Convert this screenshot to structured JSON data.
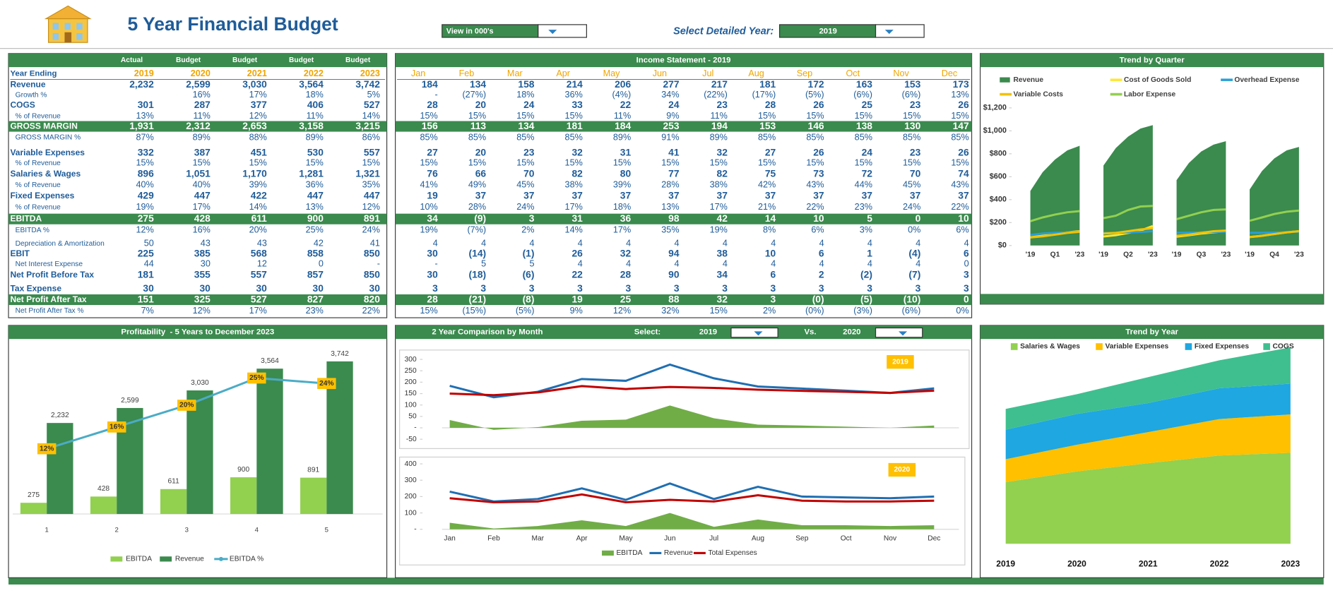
{
  "header": {
    "title": "5 Year Financial Budget",
    "view_selector": "View in 000's",
    "year_selector_label": "Select Detailed Year:",
    "selected_year": "2019"
  },
  "annual_table": {
    "column_types": [
      "Actual",
      "Budget",
      "Budget",
      "Budget",
      "Budget"
    ],
    "year_label": "Year Ending",
    "years": [
      "2019",
      "2020",
      "2021",
      "2022",
      "2023"
    ],
    "rows": [
      {
        "label": "Revenue",
        "values": [
          "2,232",
          "2,599",
          "3,030",
          "3,564",
          "3,742"
        ]
      },
      {
        "label": "Growth %",
        "values": [
          null,
          "16%",
          "17%",
          "18%",
          "5%"
        ]
      },
      {
        "label": "COGS",
        "values": [
          "301",
          "287",
          "377",
          "406",
          "527"
        ]
      },
      {
        "label": "% of Revenue",
        "values": [
          "13%",
          "11%",
          "12%",
          "11%",
          "14%"
        ]
      },
      {
        "label": "GROSS MARGIN",
        "values": [
          "1,931",
          "2,312",
          "2,653",
          "3,158",
          "3,215"
        ]
      },
      {
        "label": "GROSS MARGIN %",
        "values": [
          "87%",
          "89%",
          "88%",
          "89%",
          "86%"
        ]
      },
      {
        "label": "Variable Expenses",
        "values": [
          "332",
          "387",
          "451",
          "530",
          "557"
        ]
      },
      {
        "label": "% of Revenue",
        "values": [
          "15%",
          "15%",
          "15%",
          "15%",
          "15%"
        ]
      },
      {
        "label": "Salaries & Wages",
        "values": [
          "896",
          "1,051",
          "1,170",
          "1,281",
          "1,321"
        ]
      },
      {
        "label": "% of Revenue",
        "values": [
          "40%",
          "40%",
          "39%",
          "36%",
          "35%"
        ]
      },
      {
        "label": "Fixed Expenses",
        "values": [
          "429",
          "447",
          "422",
          "447",
          "447"
        ]
      },
      {
        "label": "% of Revenue",
        "values": [
          "19%",
          "17%",
          "14%",
          "13%",
          "12%"
        ]
      },
      {
        "label": "EBITDA",
        "values": [
          "275",
          "428",
          "611",
          "900",
          "891"
        ]
      },
      {
        "label": "EBITDA %",
        "values": [
          "12%",
          "16%",
          "20%",
          "25%",
          "24%"
        ]
      },
      {
        "label": "Depreciation & Amortization",
        "values": [
          "50",
          "43",
          "43",
          "42",
          "41"
        ]
      },
      {
        "label": "EBIT",
        "values": [
          "225",
          "385",
          "568",
          "858",
          "850"
        ]
      },
      {
        "label": "Net Interest Expense",
        "values": [
          "44",
          "30",
          "12",
          "0",
          "-"
        ]
      },
      {
        "label": "Net Profit Before Tax",
        "values": [
          "181",
          "355",
          "557",
          "857",
          "850"
        ]
      },
      {
        "label": "Tax Expense",
        "values": [
          "30",
          "30",
          "30",
          "30",
          "30"
        ]
      },
      {
        "label": "Net Profit After Tax",
        "values": [
          "151",
          "325",
          "527",
          "827",
          "820"
        ]
      },
      {
        "label": "Net Profit After Tax %",
        "values": [
          "7%",
          "12%",
          "17%",
          "23%",
          "22%"
        ]
      }
    ]
  },
  "income_statement": {
    "title": "Income Statement - 2019",
    "months": [
      "Jan",
      "Feb",
      "Mar",
      "Apr",
      "May",
      "Jun",
      "Jul",
      "Aug",
      "Sep",
      "Oct",
      "Nov",
      "Dec"
    ],
    "rows": [
      [
        "184",
        "134",
        "158",
        "214",
        "206",
        "277",
        "217",
        "181",
        "172",
        "163",
        "153",
        "173"
      ],
      [
        "-",
        "(27%)",
        "18%",
        "36%",
        "(4%)",
        "34%",
        "(22%)",
        "(17%)",
        "(5%)",
        "(6%)",
        "(6%)",
        "13%"
      ],
      [
        "28",
        "20",
        "24",
        "33",
        "22",
        "24",
        "23",
        "28",
        "26",
        "25",
        "23",
        "26"
      ],
      [
        "15%",
        "15%",
        "15%",
        "15%",
        "11%",
        "9%",
        "11%",
        "15%",
        "15%",
        "15%",
        "15%",
        "15%"
      ],
      [
        "156",
        "113",
        "134",
        "181",
        "184",
        "253",
        "194",
        "153",
        "146",
        "138",
        "130",
        "147"
      ],
      [
        "85%",
        "85%",
        "85%",
        "85%",
        "89%",
        "91%",
        "89%",
        "85%",
        "85%",
        "85%",
        "85%",
        "85%"
      ],
      [
        "27",
        "20",
        "23",
        "32",
        "31",
        "41",
        "32",
        "27",
        "26",
        "24",
        "23",
        "26"
      ],
      [
        "15%",
        "15%",
        "15%",
        "15%",
        "15%",
        "15%",
        "15%",
        "15%",
        "15%",
        "15%",
        "15%",
        "15%"
      ],
      [
        "76",
        "66",
        "70",
        "82",
        "80",
        "77",
        "82",
        "75",
        "73",
        "72",
        "70",
        "74"
      ],
      [
        "41%",
        "49%",
        "45%",
        "38%",
        "39%",
        "28%",
        "38%",
        "42%",
        "43%",
        "44%",
        "45%",
        "43%"
      ],
      [
        "19",
        "37",
        "37",
        "37",
        "37",
        "37",
        "37",
        "37",
        "37",
        "37",
        "37",
        "37"
      ],
      [
        "10%",
        "28%",
        "24%",
        "17%",
        "18%",
        "13%",
        "17%",
        "21%",
        "22%",
        "23%",
        "24%",
        "22%"
      ],
      [
        "34",
        "(9)",
        "3",
        "31",
        "36",
        "98",
        "42",
        "14",
        "10",
        "5",
        "0",
        "10"
      ],
      [
        "19%",
        "(7%)",
        "2%",
        "14%",
        "17%",
        "35%",
        "19%",
        "8%",
        "6%",
        "3%",
        "0%",
        "6%"
      ],
      [
        "4",
        "4",
        "4",
        "4",
        "4",
        "4",
        "4",
        "4",
        "4",
        "4",
        "4",
        "4"
      ],
      [
        "30",
        "(14)",
        "(1)",
        "26",
        "32",
        "94",
        "38",
        "10",
        "6",
        "1",
        "(4)",
        "6"
      ],
      [
        "-",
        "5",
        "5",
        "4",
        "4",
        "4",
        "4",
        "4",
        "4",
        "4",
        "4",
        "0"
      ],
      [
        "30",
        "(18)",
        "(6)",
        "22",
        "28",
        "90",
        "34",
        "6",
        "2",
        "(2)",
        "(7)",
        "3"
      ],
      [
        "3",
        "3",
        "3",
        "3",
        "3",
        "3",
        "3",
        "3",
        "3",
        "3",
        "3",
        "3"
      ],
      [
        "28",
        "(21)",
        "(8)",
        "19",
        "25",
        "88",
        "32",
        "3",
        "(0)",
        "(5)",
        "(10)",
        "0"
      ],
      [
        "15%",
        "(15%)",
        "(5%)",
        "9%",
        "12%",
        "32%",
        "15%",
        "2%",
        "(0%)",
        "(3%)",
        "(6%)",
        "0%"
      ]
    ]
  },
  "chart_data": [
    {
      "type": "area",
      "title": "Trend by Quarter",
      "categories": [
        "'19",
        null,
        null,
        null,
        "'23",
        "'19",
        null,
        null,
        null,
        "'23",
        "'19",
        null,
        null,
        null,
        "'23",
        "'19",
        null,
        null,
        null,
        "'23"
      ],
      "groups": [
        "Q1",
        "Q2",
        "Q3",
        "Q4"
      ],
      "ylim": [
        0,
        1200
      ],
      "yticks": [
        {
          "value": 0,
          "label": "$0"
        },
        {
          "value": 200,
          "label": "$200"
        },
        {
          "value": 400,
          "label": "$400"
        },
        {
          "value": 600,
          "label": "$600"
        },
        {
          "value": 800,
          "label": "$800"
        },
        {
          "value": 1000,
          "label": "$1,000"
        },
        {
          "value": 1200,
          "label": "$1,200"
        }
      ],
      "legend": "top",
      "series": [
        {
          "name": "Revenue",
          "color": "#3b8a4e",
          "style": "area",
          "values": [
            476,
            640,
            750,
            830,
            870,
            697,
            850,
            950,
            1020,
            1050,
            570,
            720,
            820,
            880,
            910,
            489,
            650,
            760,
            830,
            860
          ]
        },
        {
          "name": "Cost of Goods Sold",
          "color": "#ffe633",
          "style": "line",
          "values": [
            72,
            85,
            100,
            115,
            125,
            79,
            90,
            110,
            130,
            170,
            77,
            90,
            105,
            115,
            125,
            74,
            85,
            100,
            115,
            125
          ]
        },
        {
          "name": "Overhead Expense",
          "color": "#2a9fd6",
          "style": "line",
          "values": [
            93,
            105,
            110,
            115,
            120,
            111,
            111,
            115,
            118,
            125,
            111,
            112,
            115,
            118,
            120,
            111,
            111,
            113,
            117,
            120
          ]
        },
        {
          "name": "Variable Costs",
          "color": "#f2c200",
          "style": "line",
          "values": [
            70,
            80,
            95,
            110,
            120,
            104,
            110,
            125,
            140,
            150,
            85,
            95,
            110,
            125,
            130,
            73,
            85,
            100,
            115,
            125
          ]
        },
        {
          "name": "Labor Expense",
          "color": "#92d050",
          "style": "line",
          "values": [
            212,
            245,
            270,
            290,
            300,
            239,
            260,
            310,
            340,
            345,
            230,
            260,
            290,
            310,
            315,
            216,
            245,
            275,
            295,
            305
          ]
        }
      ]
    },
    {
      "type": "combo",
      "title": "Profitability  - 5 Years to December 2023",
      "categories": [
        "1",
        "2",
        "3",
        "4",
        "5"
      ],
      "ylim": [
        0,
        4000
      ],
      "y2lim": [
        0,
        30
      ],
      "legend": "bottom",
      "series": [
        {
          "name": "EBITDA",
          "color": "#92d050",
          "style": "bar",
          "values": [
            275,
            428,
            611,
            900,
            891
          ]
        },
        {
          "name": "Revenue",
          "color": "#3b8a4e",
          "style": "bar",
          "values": [
            2232,
            2599,
            3030,
            3564,
            3742
          ],
          "value_labels": [
            "2,232",
            "2,599",
            "3,030",
            "3,564",
            "3,742"
          ]
        },
        {
          "name": "EBITDA %",
          "color": "#4bacc6",
          "style": "line",
          "axis": "y2",
          "values": [
            12,
            16,
            20,
            25,
            24
          ],
          "value_labels": [
            "12%",
            "16%",
            "20%",
            "25%",
            "24%"
          ]
        }
      ]
    },
    {
      "type": "comparison",
      "title": "2 Year Comparison by Month",
      "select_label": "Select:",
      "vs_label": "Vs.",
      "categories": [
        "Jan",
        "Feb",
        "Mar",
        "Apr",
        "May",
        "Jun",
        "Jul",
        "Aug",
        "Sep",
        "Oct",
        "Nov",
        "Dec"
      ],
      "legend": "bottom",
      "panels": [
        {
          "year": "2019",
          "ylim": [
            -50,
            300
          ],
          "yticks": [
            300,
            250,
            200,
            150,
            100,
            50,
            {
              "value": 0,
              "label": "-"
            },
            -50
          ],
          "series": [
            {
              "name": "EBITDA",
              "color": "#70ad47",
              "style": "area",
              "values": [
                34,
                -9,
                3,
                31,
                36,
                98,
                42,
                14,
                10,
                5,
                0,
                10
              ]
            },
            {
              "name": "Revenue",
              "color": "#1f6fb2",
              "style": "line",
              "values": [
                184,
                134,
                158,
                214,
                206,
                277,
                217,
                181,
                172,
                163,
                153,
                173
              ]
            },
            {
              "name": "Total Expenses",
              "color": "#c00000",
              "style": "line",
              "values": [
                150,
                143,
                155,
                183,
                170,
                179,
                175,
                167,
                162,
                158,
                153,
                163
              ]
            }
          ]
        },
        {
          "year": "2020",
          "ylim": [
            0,
            400
          ],
          "yticks": [
            400,
            300,
            200,
            100,
            {
              "value": 0,
              "label": "-"
            }
          ],
          "series": [
            {
              "name": "EBITDA",
              "color": "#70ad47",
              "style": "area",
              "values": [
                40,
                5,
                20,
                55,
                20,
                100,
                15,
                60,
                25,
                25,
                20,
                25
              ]
            },
            {
              "name": "Revenue",
              "color": "#1f6fb2",
              "style": "line",
              "values": [
                230,
                170,
                185,
                250,
                180,
                280,
                185,
                260,
                200,
                195,
                190,
                200
              ]
            },
            {
              "name": "Total Expenses",
              "color": "#c00000",
              "style": "line",
              "values": [
                190,
                165,
                170,
                213,
                165,
                180,
                170,
                208,
                175,
                170,
                170,
                175
              ]
            }
          ]
        }
      ]
    },
    {
      "type": "stacked-area",
      "title": "Trend by Year",
      "categories": [
        "2019",
        "2020",
        "2021",
        "2022",
        "2023"
      ],
      "ylim": [
        0,
        2900
      ],
      "legend": "top",
      "series": [
        {
          "name": "Salaries & Wages",
          "color": "#92d050",
          "values": [
            896,
            1051,
            1170,
            1281,
            1321
          ]
        },
        {
          "name": "Variable Expenses",
          "color": "#ffc000",
          "values": [
            332,
            387,
            451,
            530,
            557
          ]
        },
        {
          "name": "Fixed Expenses",
          "color": "#1ea7e1",
          "values": [
            429,
            447,
            422,
            447,
            447
          ]
        },
        {
          "name": "COGS",
          "color": "#3fbf8f",
          "values": [
            301,
            287,
            377,
            406,
            527
          ]
        }
      ]
    }
  ]
}
